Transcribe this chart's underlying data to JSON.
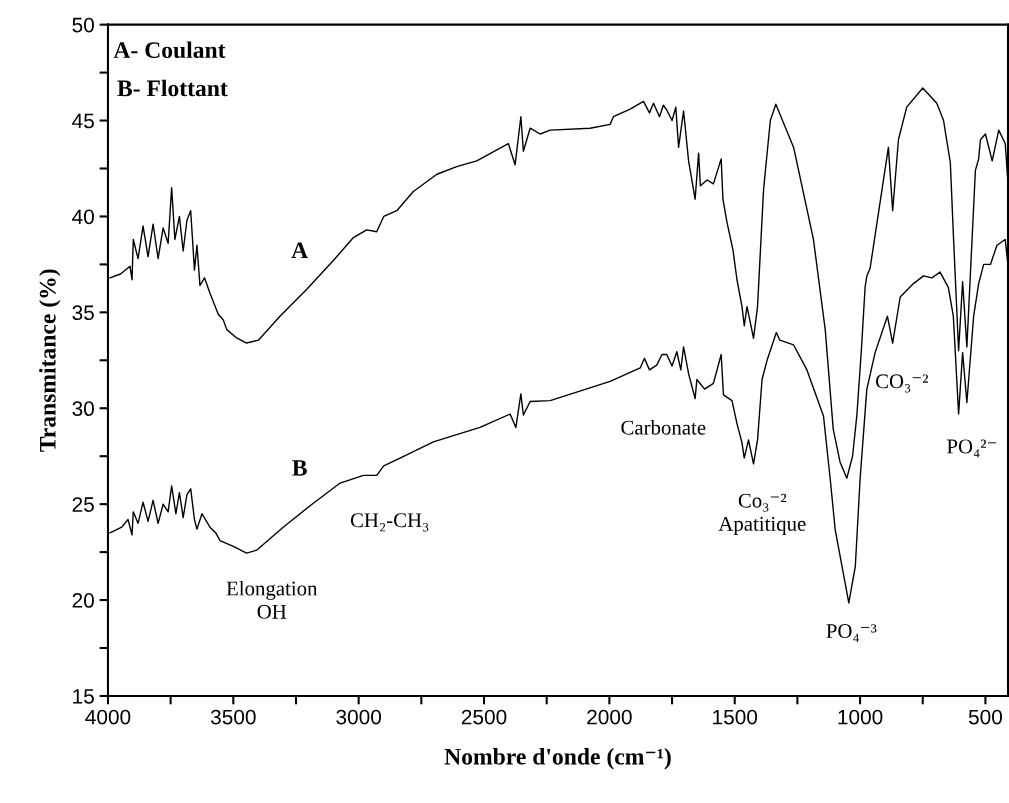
{
  "chart_data": {
    "type": "line",
    "xlabel": "Nombre d'onde (cm⁻¹)",
    "ylabel": "Transmitance (%)",
    "xlim": [
      4000,
      410
    ],
    "ylim": [
      15,
      50
    ],
    "xticks": [
      4000,
      {
        "value": 3750,
        "label": null
      },
      3500,
      {
        "value": 3250,
        "label": null
      },
      3000,
      {
        "value": 2750,
        "label": null
      },
      2500,
      {
        "value": 2250,
        "label": null
      },
      2000,
      {
        "value": 1750,
        "label": null
      },
      1500,
      {
        "value": 1250,
        "label": null
      },
      1000,
      {
        "value": 750,
        "label": null
      },
      500
    ],
    "yticks": [
      15,
      {
        "value": 17.5,
        "label": null
      },
      20,
      {
        "value": 22.5,
        "label": null
      },
      25,
      {
        "value": 27.5,
        "label": null
      },
      30,
      {
        "value": 32.5,
        "label": null
      },
      35,
      {
        "value": 37.5,
        "label": null
      },
      40,
      {
        "value": 42.5,
        "label": null
      },
      45,
      {
        "value": 47.5,
        "label": null
      },
      50
    ],
    "grid": false,
    "legend": false,
    "marker": "none",
    "line_style": "solid",
    "series": [
      {
        "name": "A",
        "color": "#000000",
        "x": [
          3992,
          3950,
          3912,
          3904,
          3899,
          3880,
          3860,
          3840,
          3820,
          3800,
          3780,
          3760,
          3746,
          3733,
          3715,
          3700,
          3685,
          3670,
          3655,
          3645,
          3633,
          3615,
          3593,
          3575,
          3560,
          3540,
          3526,
          3490,
          3447,
          3400,
          3314,
          3207,
          3101,
          3021,
          2968,
          2928,
          2900,
          2848,
          2782,
          2688,
          2609,
          2529,
          2403,
          2376,
          2353,
          2343,
          2316,
          2276,
          2236,
          2077,
          1997,
          1984,
          1917,
          1864,
          1840,
          1824,
          1800,
          1785,
          1771,
          1750,
          1735,
          1724,
          1704,
          1684,
          1658,
          1644,
          1637,
          1610,
          1585,
          1554,
          1547,
          1531,
          1507,
          1491,
          1471,
          1462,
          1451,
          1425,
          1409,
          1385,
          1358,
          1336,
          1265,
          1186,
          1139,
          1107,
          1080,
          1053,
          1030,
          1013,
          995,
          980,
          973,
          960,
          887,
          870,
          847,
          814,
          750,
          694,
          667,
          640,
          627,
          607,
          591,
          574,
          540,
          527,
          520,
          500,
          473,
          447,
          421,
          412
        ],
        "values": [
          36.8,
          37.0,
          37.4,
          36.7,
          38.8,
          37.8,
          39.5,
          37.9,
          39.6,
          37.8,
          39.4,
          38.6,
          41.5,
          38.8,
          40.0,
          38.2,
          39.8,
          40.3,
          37.2,
          38.5,
          36.4,
          36.8,
          36.0,
          35.4,
          34.9,
          34.6,
          34.1,
          33.7,
          33.4,
          33.55,
          34.8,
          36.2,
          37.7,
          38.9,
          39.3,
          39.2,
          40.0,
          40.3,
          41.3,
          42.2,
          42.6,
          42.9,
          43.8,
          42.7,
          45.2,
          43.4,
          44.6,
          44.3,
          44.5,
          44.6,
          44.8,
          45.2,
          45.6,
          46.0,
          45.4,
          45.9,
          45.2,
          45.8,
          45.55,
          45.0,
          45.7,
          43.6,
          45.5,
          42.9,
          40.9,
          43.3,
          41.6,
          41.9,
          41.7,
          43.0,
          40.9,
          39.7,
          38.25,
          36.7,
          35.3,
          34.3,
          35.3,
          33.65,
          35.3,
          41.4,
          45.0,
          45.85,
          43.6,
          38.8,
          34.1,
          28.9,
          27.2,
          26.35,
          27.5,
          29.6,
          33.0,
          36.3,
          36.9,
          37.3,
          43.6,
          40.3,
          44.0,
          45.7,
          46.7,
          45.9,
          45.0,
          42.8,
          38.8,
          33.0,
          36.6,
          33.2,
          42.4,
          43.0,
          44.0,
          44.3,
          42.9,
          44.5,
          43.8,
          42.1
        ]
      },
      {
        "name": "B",
        "color": "#000000",
        "x": [
          3992,
          3945,
          3920,
          3904,
          3899,
          3880,
          3860,
          3840,
          3820,
          3800,
          3780,
          3760,
          3746,
          3729,
          3715,
          3700,
          3685,
          3670,
          3655,
          3645,
          3625,
          3593,
          3570,
          3553,
          3500,
          3447,
          3407,
          3301,
          3181,
          3074,
          2981,
          2928,
          2900,
          2835,
          2702,
          2516,
          2396,
          2373,
          2353,
          2343,
          2316,
          2236,
          1997,
          1877,
          1860,
          1840,
          1811,
          1790,
          1771,
          1750,
          1731,
          1715,
          1704,
          1684,
          1658,
          1651,
          1620,
          1585,
          1554,
          1545,
          1511,
          1491,
          1471,
          1462,
          1445,
          1425,
          1409,
          1391,
          1371,
          1334,
          1320,
          1265,
          1212,
          1146,
          1119,
          1099,
          1072,
          1045,
          1019,
          1000,
          980,
          973,
          940,
          891,
          870,
          840,
          787,
          747,
          714,
          681,
          648,
          628,
          607,
          591,
          574,
          547,
          527,
          507,
          480,
          454,
          421,
          412
        ],
        "values": [
          23.5,
          23.8,
          24.2,
          23.4,
          24.6,
          24.0,
          25.1,
          24.1,
          25.2,
          24.0,
          25.0,
          24.6,
          25.95,
          24.5,
          25.6,
          24.3,
          25.5,
          25.8,
          24.2,
          23.7,
          24.5,
          23.8,
          23.5,
          23.1,
          22.8,
          22.45,
          22.6,
          23.8,
          25.05,
          26.1,
          26.5,
          26.5,
          27.0,
          27.4,
          28.25,
          29.0,
          29.7,
          29.0,
          30.75,
          29.65,
          30.35,
          30.4,
          31.4,
          32.1,
          32.6,
          32.0,
          32.25,
          32.8,
          32.8,
          32.2,
          32.95,
          32.0,
          33.2,
          31.8,
          30.5,
          31.5,
          31.0,
          31.3,
          32.8,
          30.7,
          30.4,
          29.2,
          28.2,
          27.4,
          28.35,
          27.1,
          28.35,
          31.5,
          32.5,
          33.95,
          33.55,
          33.3,
          32.0,
          29.6,
          26.3,
          23.65,
          21.75,
          19.85,
          21.75,
          26.3,
          29.8,
          31.0,
          32.9,
          34.8,
          33.4,
          35.8,
          36.5,
          36.9,
          36.8,
          37.1,
          36.3,
          34.8,
          29.7,
          32.9,
          30.3,
          34.8,
          36.5,
          37.5,
          37.5,
          38.5,
          38.8,
          37.7
        ]
      }
    ],
    "annotations": [
      "A- Coulant",
      "B- Flottant",
      "Elongation\nOH",
      "CH₂-CH₃",
      "Carbonate",
      "Co₃⁻²\nApatitique",
      "PO₄⁻³",
      "CO₃⁻²",
      "PO₄²⁻"
    ]
  }
}
